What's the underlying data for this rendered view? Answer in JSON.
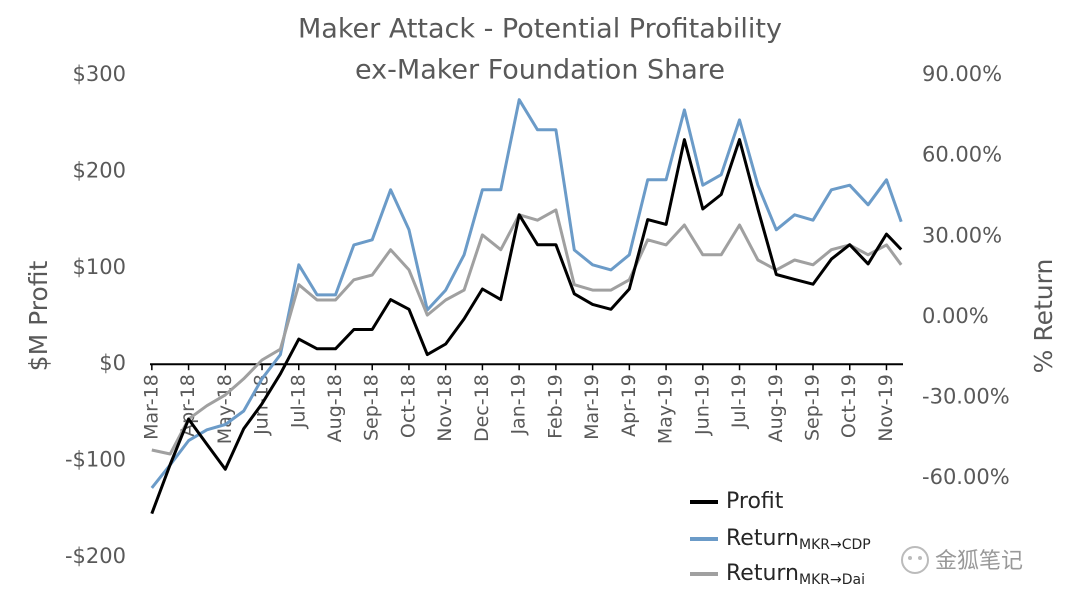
{
  "chart_data": {
    "type": "line",
    "title": "Maker Attack - Potential Profitability",
    "subtitle": "ex-Maker Foundation Share",
    "y_label": "$M Profit",
    "y2_label": "% Return",
    "watermark": "金狐笔记",
    "x": [
      0,
      0.5,
      1,
      1.5,
      2,
      2.5,
      3,
      3.5,
      4,
      4.5,
      5,
      5.5,
      6,
      6.5,
      7,
      7.5,
      8,
      8.5,
      9,
      9.5,
      10,
      10.5,
      11,
      11.5,
      12,
      12.5,
      13,
      13.5,
      14,
      14.5,
      15,
      15.5,
      16,
      16.5,
      17,
      17.5,
      18,
      18.5,
      19,
      19.5,
      20,
      20.4
    ],
    "xlim": [
      -0.05,
      20.45
    ],
    "xticks": [
      {
        "value": 0,
        "label": "Mar-18"
      },
      {
        "value": 1,
        "label": "Apr-18"
      },
      {
        "value": 2,
        "label": "May-18"
      },
      {
        "value": 3,
        "label": "Jun-18"
      },
      {
        "value": 4,
        "label": "Jul-18"
      },
      {
        "value": 5,
        "label": "Aug-18"
      },
      {
        "value": 6,
        "label": "Sep-18"
      },
      {
        "value": 7,
        "label": "Oct-18"
      },
      {
        "value": 8,
        "label": "Nov-18"
      },
      {
        "value": 9,
        "label": "Dec-18"
      },
      {
        "value": 10,
        "label": "Jan-19"
      },
      {
        "value": 11,
        "label": "Feb-19"
      },
      {
        "value": 12,
        "label": "Mar-19"
      },
      {
        "value": 13,
        "label": "Apr-19"
      },
      {
        "value": 14,
        "label": "May-19"
      },
      {
        "value": 15,
        "label": "Jun-19"
      },
      {
        "value": 16,
        "label": "Jul-19"
      },
      {
        "value": 17,
        "label": "Aug-19"
      },
      {
        "value": 18,
        "label": "Sep-19"
      },
      {
        "value": 19,
        "label": "Oct-19"
      },
      {
        "value": 20,
        "label": "Nov-19"
      }
    ],
    "ylim": [
      -200,
      300
    ],
    "yticks": [
      {
        "value": -200,
        "label": "-$200"
      },
      {
        "value": -100,
        "label": "-$100"
      },
      {
        "value": 0,
        "label": "$0"
      },
      {
        "value": 100,
        "label": "$100"
      },
      {
        "value": 200,
        "label": "$200"
      },
      {
        "value": 300,
        "label": "$300"
      }
    ],
    "y2lim": [
      -89.3,
      90
    ],
    "y2ticks": [
      {
        "value": -60,
        "label": "-60.00%"
      },
      {
        "value": -30,
        "label": "-30.00%"
      },
      {
        "value": 0,
        "label": "0.00%"
      },
      {
        "value": 30,
        "label": "30.00%"
      },
      {
        "value": 60,
        "label": "60.00%"
      },
      {
        "value": 90,
        "label": "90.00%"
      }
    ],
    "series": [
      {
        "name": "Return",
        "subscript": "MKR→CDP",
        "color": "#6b9bc8",
        "axis": "y2",
        "values": [
          -63.6,
          -55,
          -46,
          -42,
          -40,
          -35,
          -23,
          -14,
          19.4,
          8.2,
          8.2,
          26.8,
          28.7,
          47.3,
          32.4,
          2.6,
          10,
          23.1,
          47.3,
          47.3,
          80.8,
          69.6,
          69.6,
          24.9,
          19.4,
          17.5,
          23.1,
          51,
          51,
          77,
          49,
          52.9,
          73.3,
          49,
          32.4,
          38,
          36,
          47.3,
          49,
          41.7,
          51,
          35.4
        ]
      },
      {
        "name": "Return",
        "subscript": "MKR→Dai",
        "color": "#a0a0a0",
        "axis": "y2",
        "values": [
          -49.5,
          -51,
          -38,
          -33,
          -29,
          -23,
          -16,
          -12,
          12,
          6.3,
          6.3,
          13.8,
          15.6,
          25,
          17.5,
          0.7,
          6.3,
          10,
          30.5,
          25,
          38,
          36,
          39.8,
          12,
          10,
          10,
          13.8,
          28.7,
          26.8,
          34.2,
          23.1,
          23.1,
          34.2,
          21.2,
          17.5,
          21.2,
          19.4,
          25,
          26.8,
          23.1,
          26.8,
          19.4
        ]
      },
      {
        "name": "Profit",
        "color": "#000000",
        "values": [
          -155,
          -104,
          -57,
          -83,
          -109,
          -67,
          -41,
          -10,
          26,
          16,
          16,
          36,
          36,
          67,
          57,
          10,
          21,
          47,
          78,
          67,
          155,
          124,
          124,
          73,
          62,
          57,
          78,
          150,
          145,
          233,
          161,
          176,
          233,
          161,
          93,
          88,
          83,
          109,
          124,
          104,
          135,
          119
        ]
      }
    ]
  }
}
